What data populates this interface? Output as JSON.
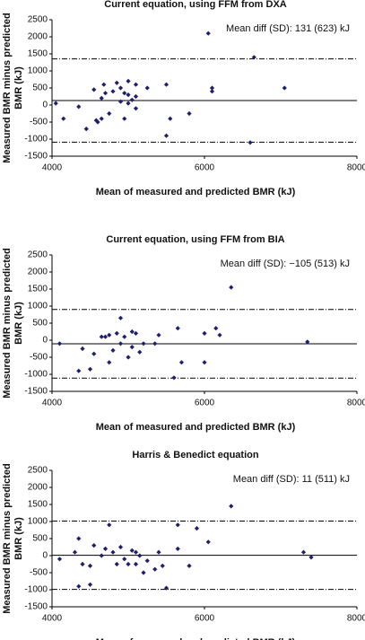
{
  "chart_data": [
    {
      "type": "scatter",
      "title": "Current equation, using FFM from DXA",
      "xlabel": "Mean of measured and predicted BMR (kJ)",
      "ylabel": [
        "Measured BMR minus predicted",
        "BMR (kJ)"
      ],
      "annotation": "Mean diff (SD): 131 (623) kJ",
      "color": "#1f1f6e",
      "x": [
        4050,
        4150,
        4350,
        4450,
        4550,
        4580,
        4600,
        4650,
        4650,
        4680,
        4700,
        4750,
        4800,
        4850,
        4900,
        4900,
        4950,
        4950,
        5000,
        5000,
        5050,
        5100,
        5100,
        5100,
        5250,
        5500,
        5500,
        5550,
        5800,
        6050,
        6100,
        6100,
        6600,
        6650,
        7050,
        5000
      ],
      "values": [
        50,
        -400,
        -50,
        -700,
        450,
        -450,
        -500,
        200,
        -400,
        600,
        350,
        -250,
        400,
        650,
        500,
        100,
        -400,
        350,
        300,
        700,
        150,
        250,
        -100,
        600,
        500,
        600,
        -900,
        -400,
        -250,
        2100,
        400,
        500,
        -1100,
        1400,
        500,
        50
      ],
      "hlines": [
        {
          "value": 131,
          "style": "solid"
        },
        {
          "value": 1352,
          "style": "dashdot"
        },
        {
          "value": -1090,
          "style": "dashdot"
        }
      ],
      "xlim": [
        4000,
        8000
      ],
      "xticks": [
        4000,
        6000,
        8000
      ],
      "ylim": [
        -1500,
        2500
      ],
      "yticks": [
        -1500,
        -1000,
        -500,
        0,
        500,
        1000,
        1500,
        2000,
        2500
      ]
    },
    {
      "type": "scatter",
      "title": "Current equation, using FFM from BIA",
      "xlabel": "Mean of measured and predicted BMR (kJ)",
      "ylabel": [
        "Measured BMR minus predicted",
        "BMR (kJ)"
      ],
      "annotation": "Mean diff (SD): −105 (513) kJ",
      "color": "#1f1f6e",
      "x": [
        4100,
        4350,
        4400,
        4500,
        4550,
        4650,
        4700,
        4750,
        4750,
        4800,
        4850,
        4900,
        4900,
        4950,
        5000,
        5050,
        5050,
        5100,
        5150,
        5200,
        5350,
        5400,
        5600,
        5650,
        5700,
        6000,
        6000,
        6150,
        6200,
        6350,
        7350
      ],
      "values": [
        -100,
        -900,
        -250,
        -850,
        -400,
        100,
        100,
        -650,
        150,
        -300,
        200,
        650,
        -100,
        100,
        -500,
        250,
        -200,
        200,
        -350,
        -100,
        -100,
        150,
        -1100,
        350,
        -650,
        200,
        -650,
        350,
        150,
        1550,
        -50
      ],
      "hlines": [
        {
          "value": -105,
          "style": "solid"
        },
        {
          "value": 901,
          "style": "dashdot"
        },
        {
          "value": -1111,
          "style": "dashdot"
        }
      ],
      "xlim": [
        4000,
        8000
      ],
      "xticks": [
        4000,
        6000,
        8000
      ],
      "ylim": [
        -1500,
        2500
      ],
      "yticks": [
        -1500,
        -1000,
        -500,
        0,
        500,
        1000,
        1500,
        2000,
        2500
      ]
    },
    {
      "type": "scatter",
      "title": "Harris & Benedict equation",
      "xlabel": "Mean of measured and predicted BMR (kJ)",
      "ylabel": [
        "Measured BMR minus predicted",
        "BMR (kJ)"
      ],
      "annotation": "Mean diff (SD): 11 (511) kJ",
      "color": "#1f1f6e",
      "x": [
        4100,
        4300,
        4350,
        4350,
        4400,
        4500,
        4500,
        4550,
        4650,
        4700,
        4750,
        4800,
        4850,
        4900,
        4950,
        5000,
        5050,
        5100,
        5100,
        5150,
        5200,
        5250,
        5350,
        5400,
        5450,
        5500,
        5650,
        5650,
        5800,
        5900,
        6050,
        6350,
        7300,
        7400
      ],
      "values": [
        -100,
        100,
        -900,
        500,
        -250,
        -850,
        -300,
        300,
        0,
        200,
        900,
        100,
        -250,
        250,
        -100,
        -250,
        150,
        -250,
        100,
        0,
        -500,
        -150,
        -400,
        100,
        -300,
        -950,
        200,
        900,
        -300,
        800,
        400,
        1450,
        100,
        -50
      ],
      "hlines": [
        {
          "value": 11,
          "style": "solid"
        },
        {
          "value": 1013,
          "style": "dashdot"
        },
        {
          "value": -991,
          "style": "dashdot"
        }
      ],
      "xlim": [
        4000,
        8000
      ],
      "xticks": [
        4000,
        6000,
        8000
      ],
      "ylim": [
        -1500,
        2500
      ],
      "yticks": [
        -1500,
        -1000,
        -500,
        0,
        500,
        1000,
        1500,
        2000,
        2500
      ]
    }
  ]
}
